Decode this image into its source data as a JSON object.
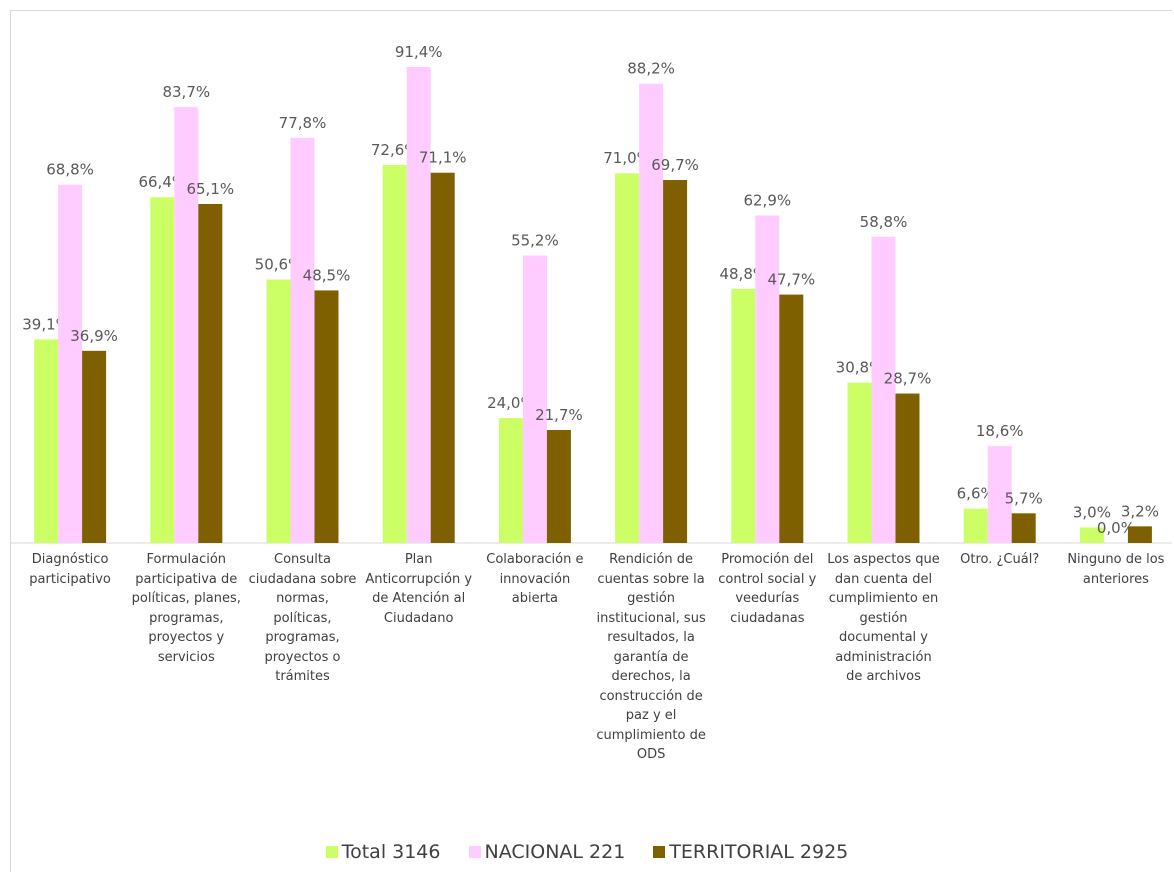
{
  "chart_data": {
    "type": "bar",
    "categories": [
      "Diagnóstico participativo",
      "Formulación participativa de políticas, planes, programas, proyectos y servicios",
      "Consulta ciudadana sobre normas, políticas, programas, proyectos o trámites",
      "Plan Anticorrupción y de Atención al Ciudadano",
      "Colaboración e innovación abierta",
      "Rendición de cuentas sobre la gestión institucional, sus resultados, la garantía de derechos, la construcción de paz y el cumplimiento de ODS",
      "Promoción del control social y veedurías ciudadanas",
      "Los aspectos que dan cuenta del cumplimiento en gestión documental y administración de archivos",
      "Otro. ¿Cuál?",
      "Ninguno de los anteriores"
    ],
    "series": [
      {
        "name": "Total 3146",
        "color": "#ccff66",
        "values": [
          39.1,
          66.4,
          50.6,
          72.6,
          24.0,
          71.0,
          48.8,
          30.8,
          6.6,
          3.0
        ],
        "value_labels": [
          "39,1%",
          "66,4%",
          "50,6%",
          "72,6%",
          "24,0%",
          "71,0%",
          "48,8%",
          "30,8%",
          "6,6%",
          "3,0%"
        ]
      },
      {
        "name": "NACIONAL 221",
        "color": "#ffccff",
        "values": [
          68.8,
          83.7,
          77.8,
          91.4,
          55.2,
          88.2,
          62.9,
          58.8,
          18.6,
          0.0
        ],
        "value_labels": [
          "68,8%",
          "83,7%",
          "77,8%",
          "91,4%",
          "55,2%",
          "88,2%",
          "62,9%",
          "58,8%",
          "18,6%",
          "0,0%"
        ]
      },
      {
        "name": "TERRITORIAL 2925",
        "color": "#7f6000",
        "values": [
          36.9,
          65.1,
          48.5,
          71.1,
          21.7,
          69.7,
          47.7,
          28.7,
          5.7,
          3.2
        ],
        "value_labels": [
          "36,9%",
          "65,1%",
          "48,5%",
          "71,1%",
          "21,7%",
          "69,7%",
          "47,7%",
          "28,7%",
          "5,7%",
          "3,2%"
        ]
      }
    ],
    "legend": "bottom"
  }
}
